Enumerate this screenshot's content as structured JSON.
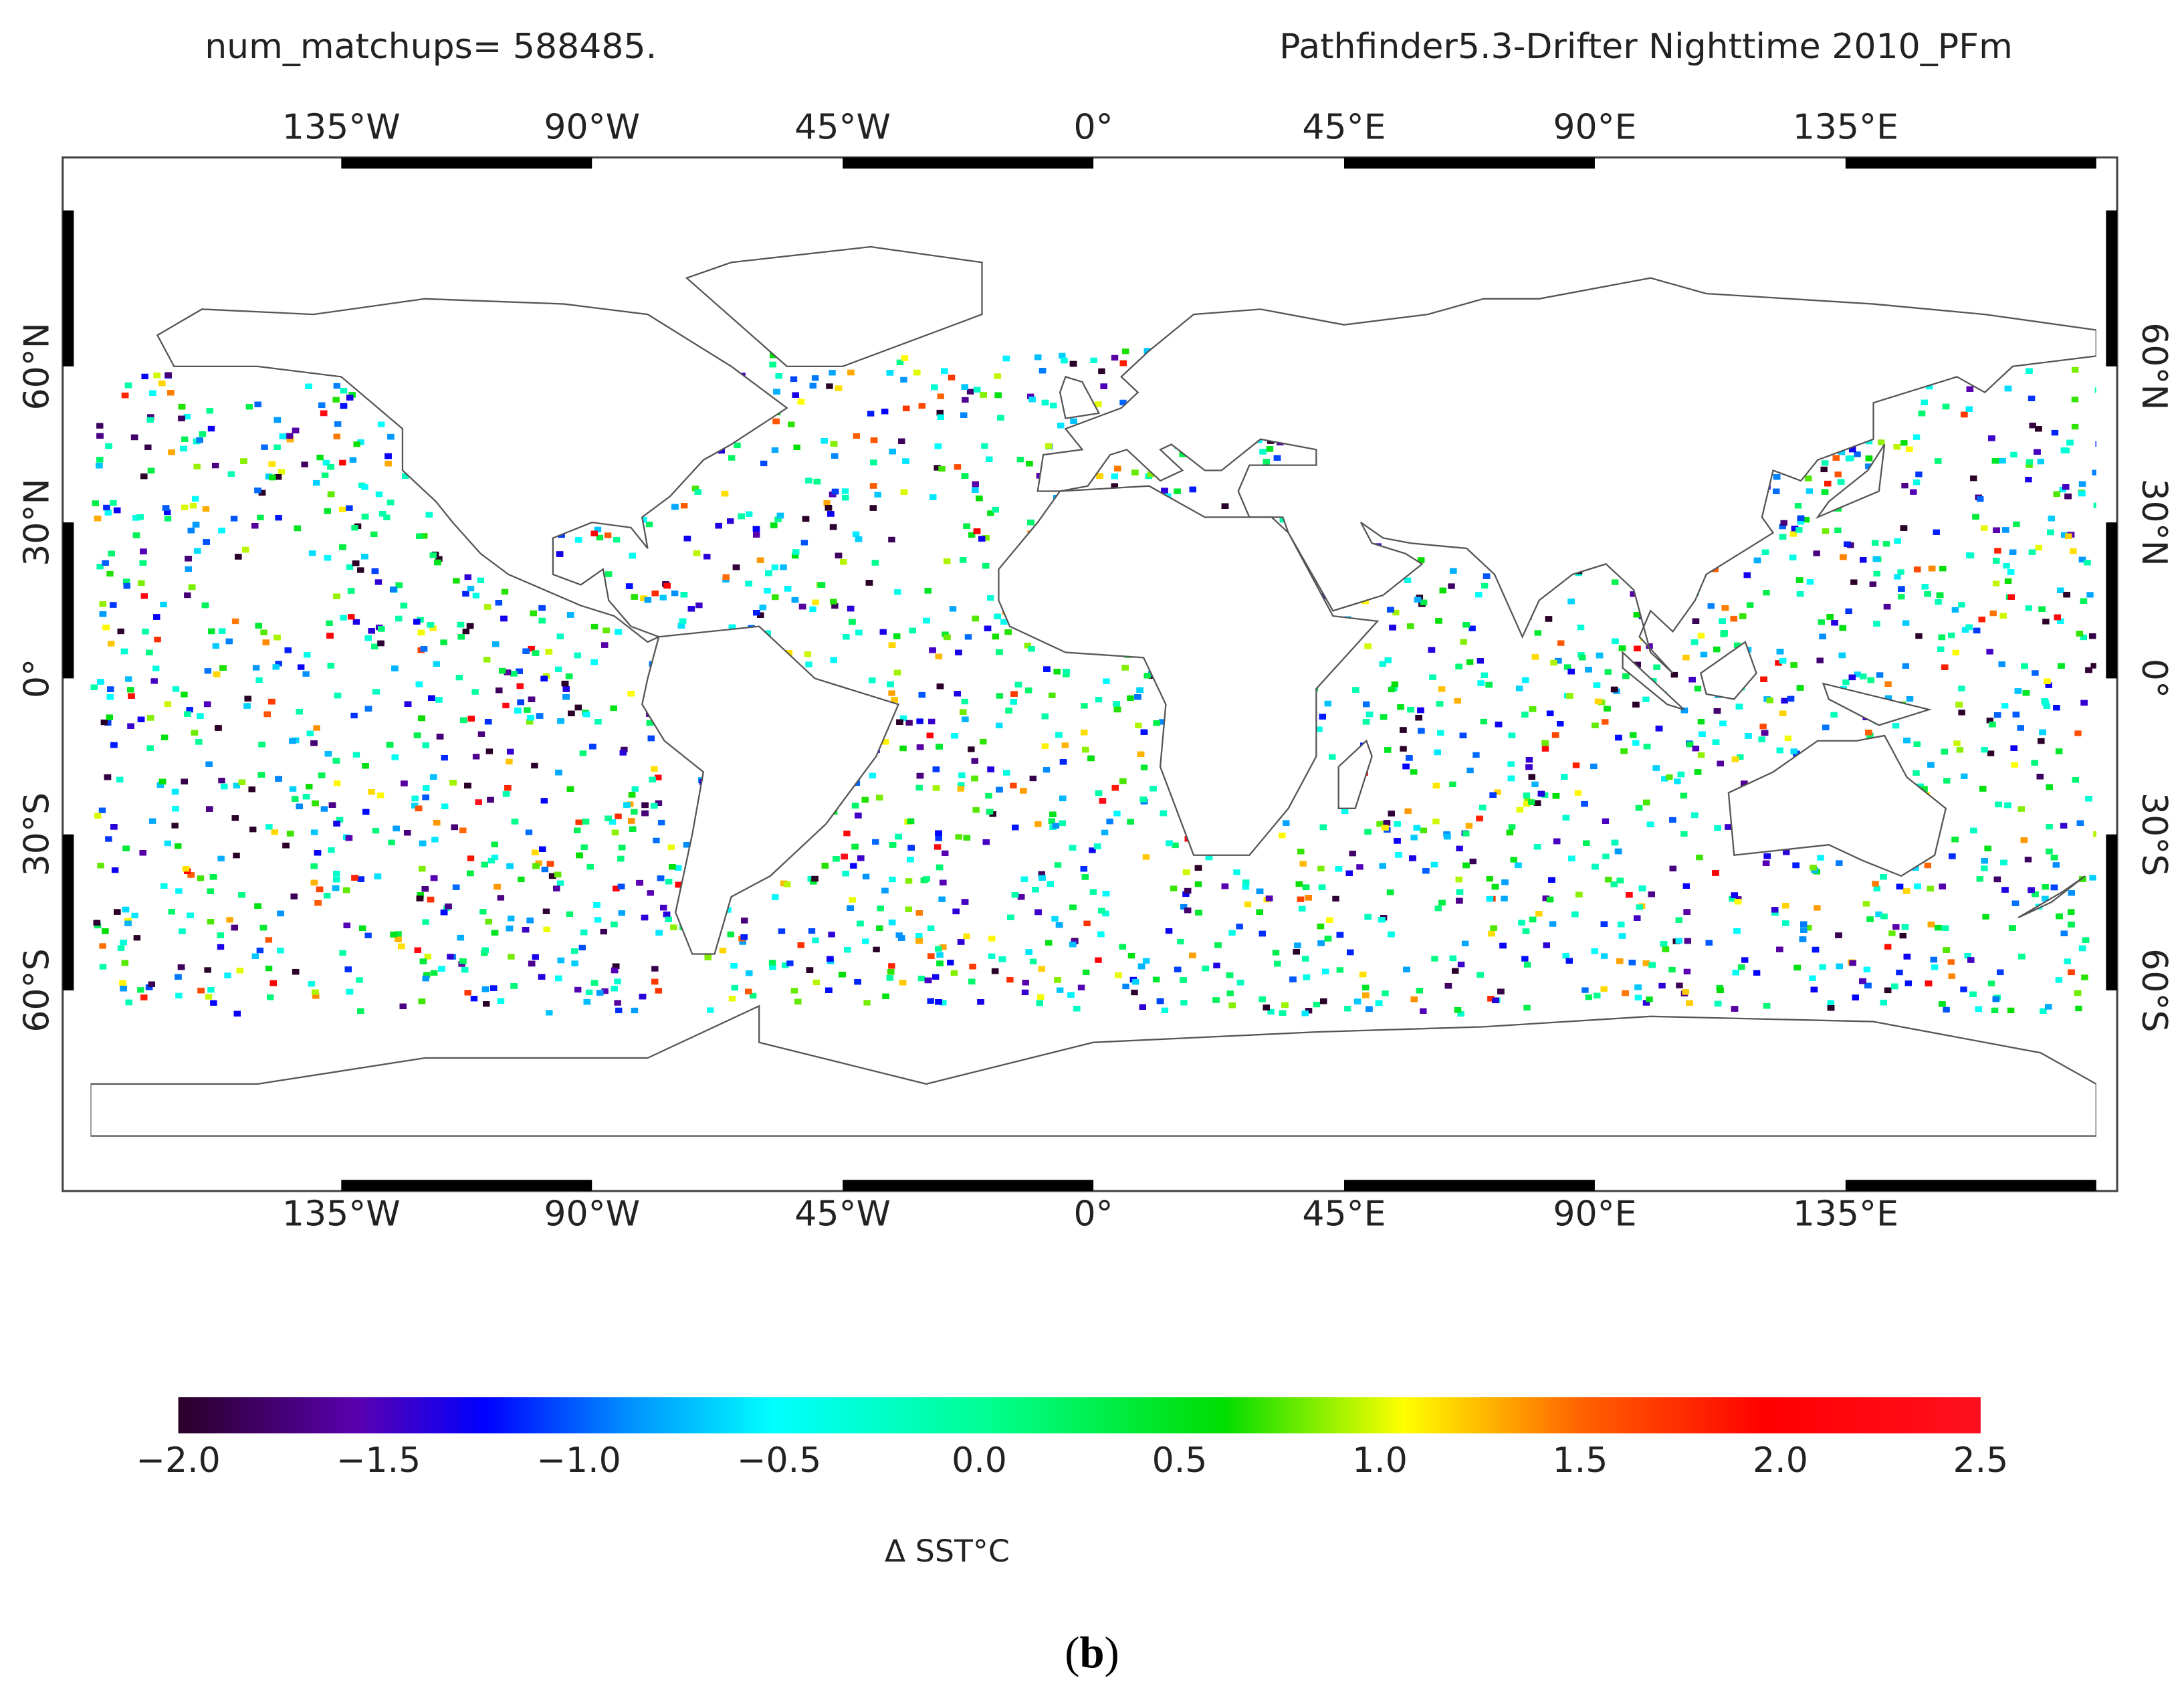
{
  "header": {
    "left": "num_matchups= 588485.",
    "right": "Pathfinder5.3-Drifter Nighttime 2010_PFm"
  },
  "map": {
    "lon_labels": [
      "135°W",
      "90°W",
      "45°W",
      "0°",
      "45°E",
      "90°E",
      "135°E"
    ],
    "lat_labels": [
      "60°N",
      "30°N",
      "0°",
      "30°S",
      "60°S"
    ]
  },
  "colorbar": {
    "ticks": [
      "−2.0",
      "−1.5",
      "−1.0",
      "−0.5",
      "0.0",
      "0.5",
      "1.0",
      "1.5",
      "2.0",
      "2.5"
    ],
    "label": "Δ SST°C"
  },
  "caption": {
    "open": "(",
    "letter": "b",
    "close": ")"
  }
}
